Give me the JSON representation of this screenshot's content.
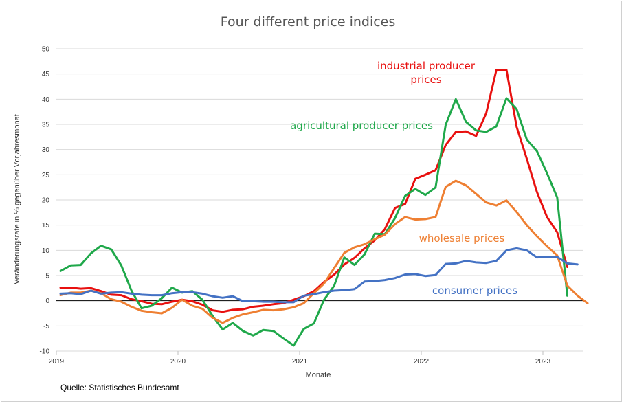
{
  "chart_data": {
    "type": "line",
    "title": "Four different price indices",
    "xlabel": "Monate",
    "ylabel": "Veränderungsrate in % gegenüber Vorjahresmonat",
    "source": "Quelle: Statistisches Bundesamt",
    "ylim": [
      -10,
      50
    ],
    "yticks": [
      -10,
      -5,
      0,
      5,
      10,
      15,
      20,
      25,
      30,
      35,
      40,
      45,
      50
    ],
    "year_ticks": [
      "2019",
      "2020",
      "2021",
      "2022",
      "2023"
    ],
    "x_start": "2019-01",
    "grid": true,
    "legend": "inline labels",
    "series": [
      {
        "name": "industrial producer prices",
        "label_lines": [
          "industrial producer",
          "prices"
        ],
        "color": "#e8100f",
        "values": [
          2.6,
          2.6,
          2.4,
          2.5,
          1.9,
          1.2,
          1.1,
          0.3,
          -0.1,
          -0.6,
          -0.7,
          -0.2,
          0.2,
          -0.1,
          -0.8,
          -1.9,
          -2.2,
          -1.8,
          -1.7,
          -1.2,
          -1.0,
          -0.7,
          -0.5,
          0.2,
          0.9,
          1.9,
          3.7,
          5.2,
          7.2,
          8.5,
          10.4,
          12.0,
          14.2,
          18.4,
          19.2,
          24.2,
          25.0,
          25.9,
          30.9,
          33.5,
          33.6,
          32.7,
          37.2,
          45.8,
          45.8,
          34.5,
          28.2,
          21.6,
          16.6,
          13.6,
          6.7
        ]
      },
      {
        "name": "agricultural producer prices",
        "label_lines": [
          "agricultural producer prices"
        ],
        "color": "#1fa84a",
        "values": [
          5.9,
          7.0,
          7.1,
          9.4,
          10.9,
          10.2,
          7.0,
          2.0,
          -1.5,
          -1.0,
          0.5,
          2.6,
          1.6,
          1.9,
          0.2,
          -3.0,
          -5.7,
          -4.4,
          -6.0,
          -6.9,
          -5.8,
          -6.0,
          -7.5,
          -8.9,
          -5.6,
          -4.5,
          0.2,
          3.0,
          8.6,
          7.1,
          9.2,
          13.3,
          13.2,
          16.4,
          20.8,
          22.2,
          21.0,
          22.5,
          34.9,
          40.0,
          35.5,
          33.8,
          33.5,
          34.6,
          40.2,
          38.0,
          32.0,
          29.7,
          25.3,
          20.5,
          1.0
        ]
      },
      {
        "name": "wholesale prices",
        "label_lines": [
          "wholesale prices"
        ],
        "color": "#ee7f32",
        "values": [
          1.1,
          1.6,
          1.6,
          2.0,
          1.5,
          0.3,
          -0.2,
          -1.2,
          -2.0,
          -2.3,
          -2.5,
          -1.4,
          0.2,
          -1.0,
          -1.6,
          -3.4,
          -4.4,
          -3.4,
          -2.7,
          -2.3,
          -1.8,
          -1.9,
          -1.7,
          -1.3,
          -0.5,
          1.5,
          3.4,
          6.5,
          9.5,
          10.6,
          11.2,
          12.2,
          13.1,
          15.2,
          16.6,
          16.1,
          16.2,
          16.6,
          22.6,
          23.8,
          22.9,
          21.2,
          19.5,
          18.9,
          19.9,
          17.6,
          15.0,
          12.8,
          10.8,
          9.0,
          3.0,
          1.0,
          -0.5
        ]
      },
      {
        "name": "consumer prices",
        "label_lines": [
          "consumer prices"
        ],
        "color": "#4472c4",
        "values": [
          1.4,
          1.5,
          1.3,
          2.0,
          1.4,
          1.6,
          1.7,
          1.4,
          1.2,
          1.1,
          1.1,
          1.5,
          1.7,
          1.7,
          1.4,
          0.9,
          0.6,
          0.9,
          -0.1,
          -0.1,
          -0.2,
          -0.2,
          -0.3,
          -0.3,
          1.0,
          1.3,
          1.7,
          2.0,
          2.1,
          2.3,
          3.8,
          3.9,
          4.1,
          4.5,
          5.2,
          5.3,
          4.9,
          5.1,
          7.3,
          7.4,
          7.9,
          7.6,
          7.5,
          7.9,
          10.0,
          10.4,
          10.0,
          8.6,
          8.7,
          8.7,
          7.4,
          7.2
        ]
      }
    ]
  }
}
